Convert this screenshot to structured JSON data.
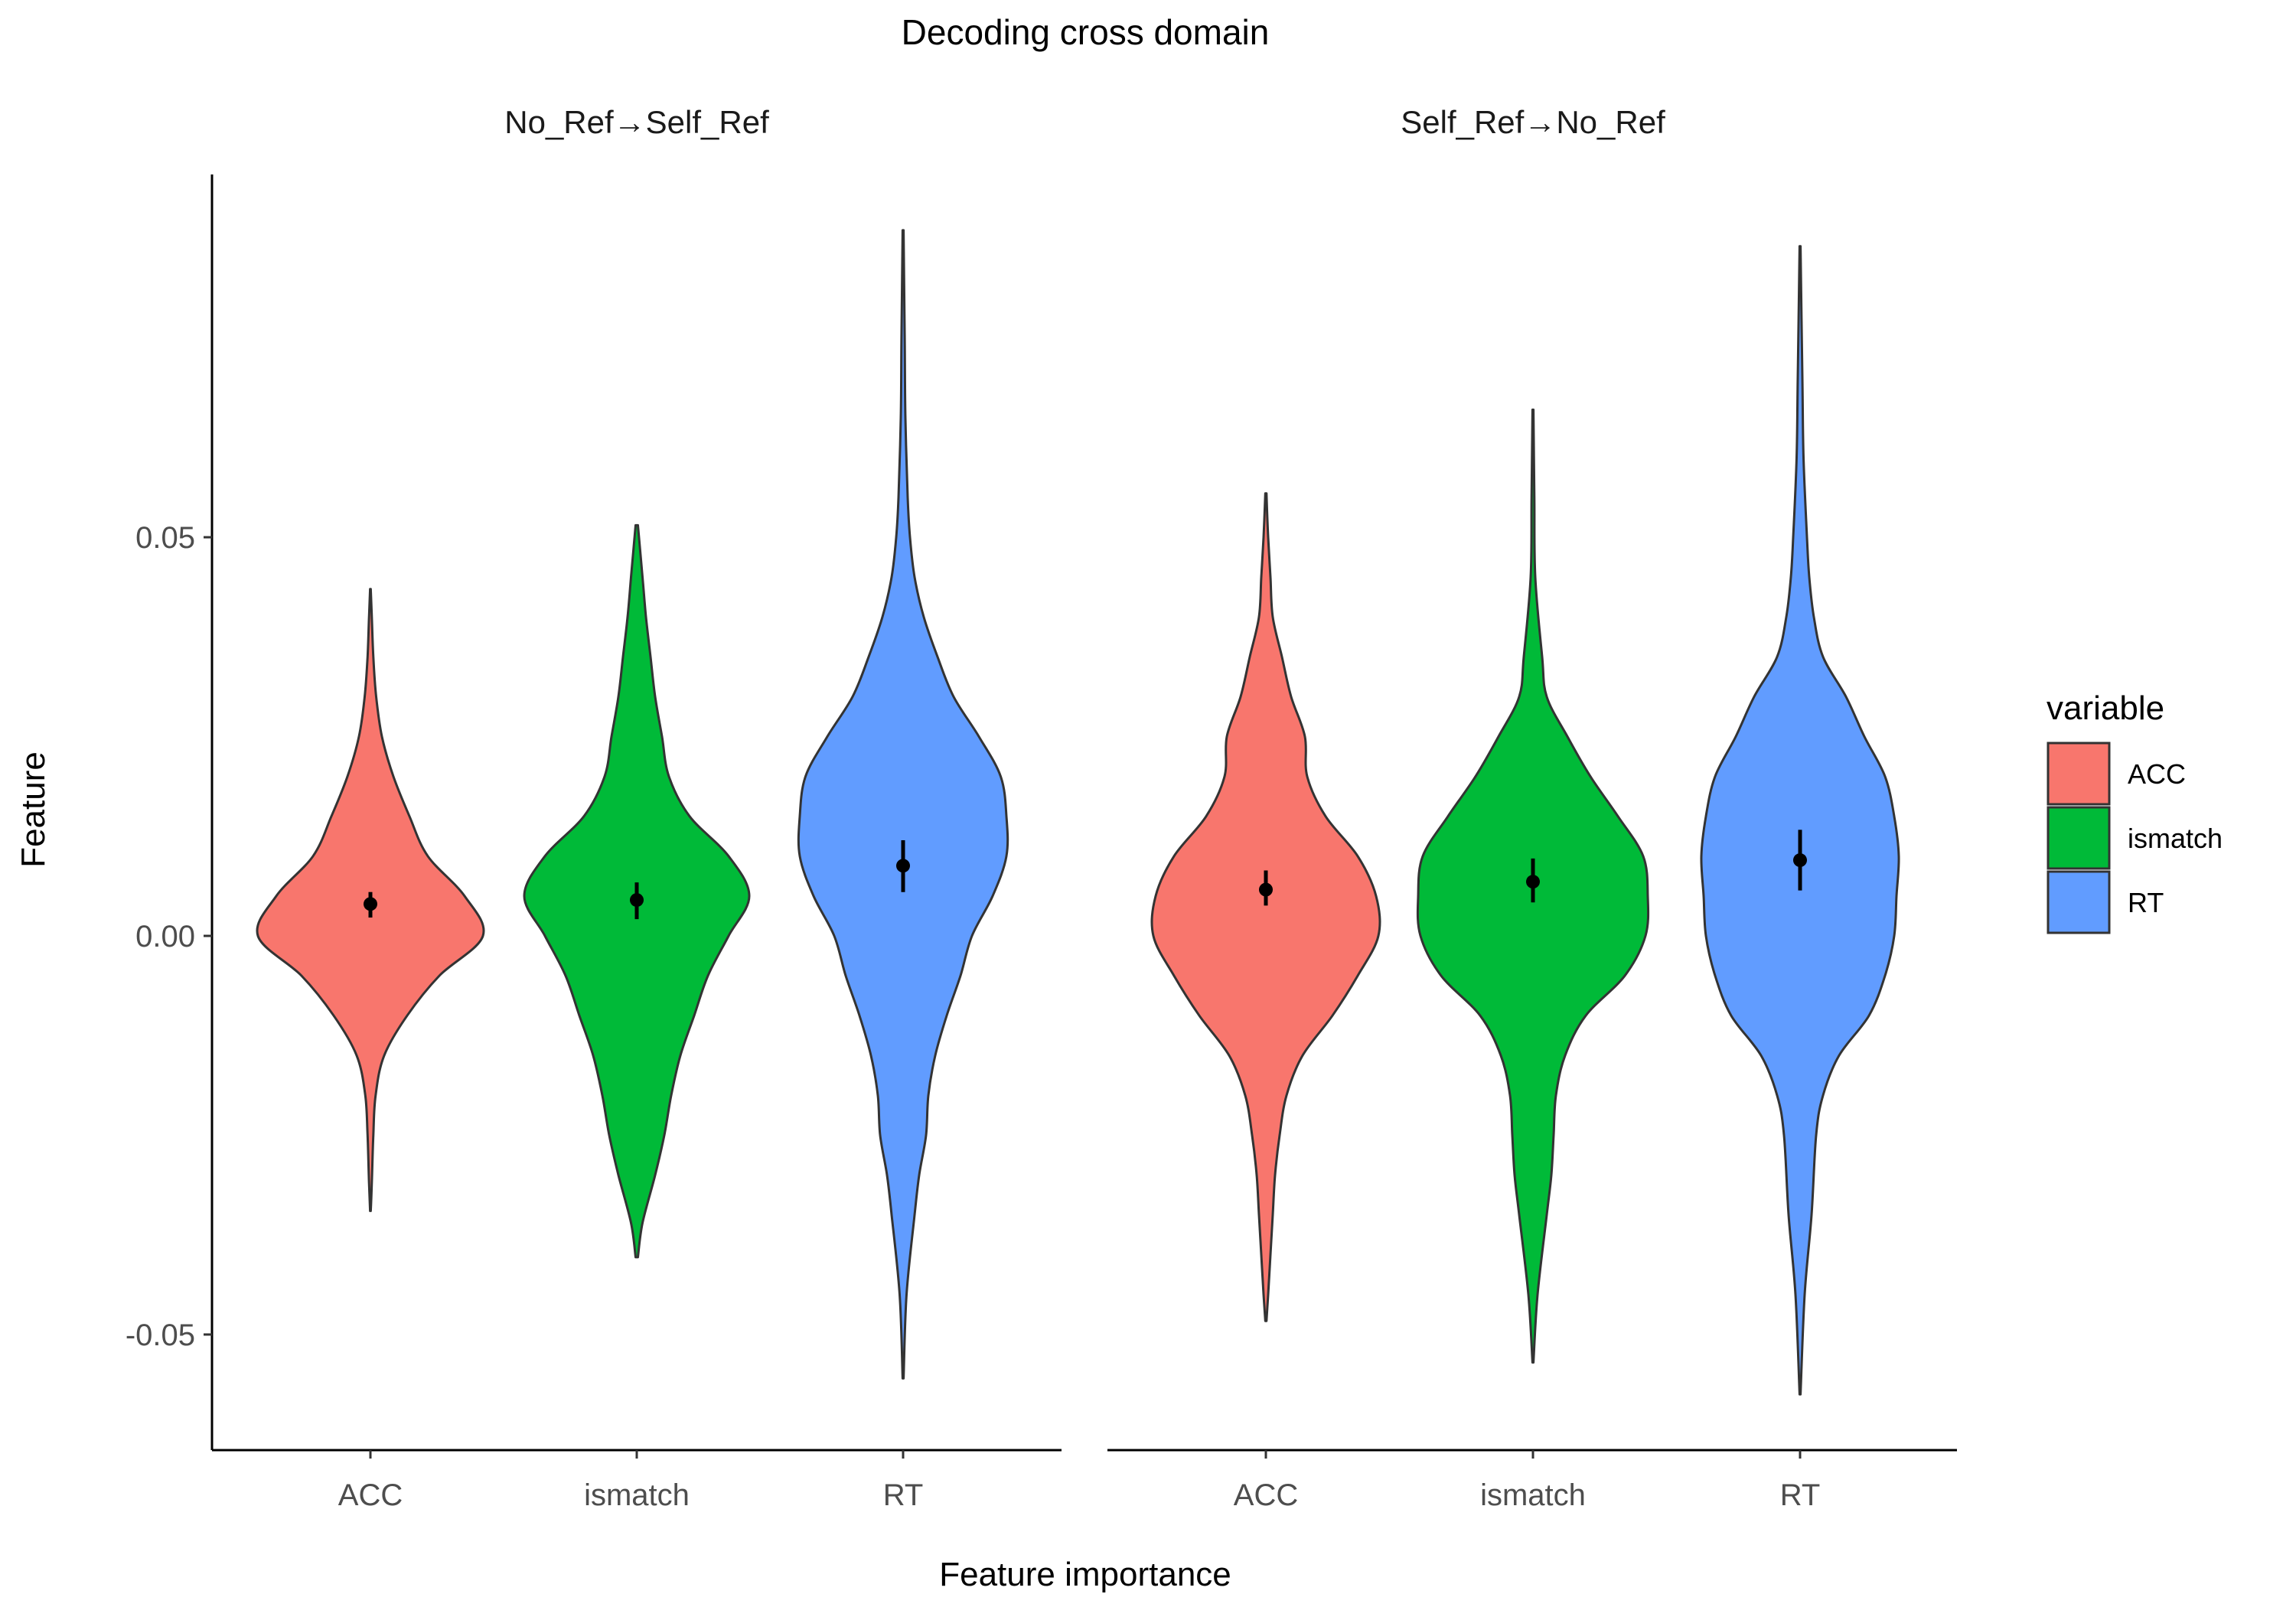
{
  "chart_data": {
    "type": "violin",
    "title": "Decoding cross domain",
    "xlabel": "Feature importance",
    "ylabel": "Feature",
    "ylim": [
      -0.0645,
      0.0955
    ],
    "yticks": [
      -0.05,
      0.0,
      0.05
    ],
    "ytick_labels": [
      "-0.05",
      "0.00",
      "0.05"
    ],
    "categories": [
      "ACC",
      "ismatch",
      "RT"
    ],
    "grid": false,
    "legend": {
      "title": "variable",
      "position": "right",
      "entries": [
        {
          "name": "ACC",
          "color": "#F8766D"
        },
        {
          "name": "ismatch",
          "color": "#00BA38"
        },
        {
          "name": "RT",
          "color": "#619CFF"
        }
      ]
    },
    "facets": [
      {
        "label": "No_Ref→Self_Ref",
        "violins": [
          {
            "category": "ACC",
            "min": -0.0345,
            "max": 0.0435,
            "mean": 0.004,
            "ci": [
              0.0023,
              0.0055
            ],
            "profile": [
              [
                -0.0345,
                0.003
              ],
              [
                -0.031,
                0.012
              ],
              [
                -0.025,
                0.025
              ],
              [
                -0.02,
                0.045
              ],
              [
                -0.015,
                0.12
              ],
              [
                -0.01,
                0.32
              ],
              [
                -0.005,
                0.6
              ],
              [
                0.0,
                0.98
              ],
              [
                0.005,
                0.82
              ],
              [
                0.01,
                0.5
              ],
              [
                0.015,
                0.34
              ],
              [
                0.02,
                0.2
              ],
              [
                0.025,
                0.1
              ],
              [
                0.03,
                0.05
              ],
              [
                0.035,
                0.025
              ],
              [
                0.04,
                0.012
              ],
              [
                0.0435,
                0.003
              ]
            ]
          },
          {
            "category": "ismatch",
            "min": -0.0403,
            "max": 0.0515,
            "mean": 0.0045,
            "ci": [
              0.0021,
              0.0067
            ],
            "profile": [
              [
                -0.0403,
                0.01
              ],
              [
                -0.036,
                0.05
              ],
              [
                -0.03,
                0.16
              ],
              [
                -0.025,
                0.24
              ],
              [
                -0.02,
                0.3
              ],
              [
                -0.015,
                0.38
              ],
              [
                -0.01,
                0.5
              ],
              [
                -0.005,
                0.62
              ],
              [
                0.0,
                0.8
              ],
              [
                0.005,
                0.98
              ],
              [
                0.01,
                0.8
              ],
              [
                0.015,
                0.46
              ],
              [
                0.02,
                0.28
              ],
              [
                0.025,
                0.22
              ],
              [
                0.03,
                0.16
              ],
              [
                0.035,
                0.12
              ],
              [
                0.04,
                0.08
              ],
              [
                0.045,
                0.05
              ],
              [
                0.0515,
                0.01
              ]
            ]
          },
          {
            "category": "RT",
            "min": -0.0555,
            "max": 0.0885,
            "mean": 0.0088,
            "ci": [
              0.0055,
              0.012
            ],
            "profile": [
              [
                -0.0555,
                0.004
              ],
              [
                -0.045,
                0.03
              ],
              [
                -0.035,
                0.1
              ],
              [
                -0.03,
                0.14
              ],
              [
                -0.025,
                0.2
              ],
              [
                -0.02,
                0.22
              ],
              [
                -0.015,
                0.28
              ],
              [
                -0.01,
                0.38
              ],
              [
                -0.005,
                0.5
              ],
              [
                0.0,
                0.6
              ],
              [
                0.005,
                0.78
              ],
              [
                0.01,
                0.9
              ],
              [
                0.015,
                0.9
              ],
              [
                0.02,
                0.85
              ],
              [
                0.025,
                0.66
              ],
              [
                0.03,
                0.44
              ],
              [
                0.035,
                0.3
              ],
              [
                0.04,
                0.18
              ],
              [
                0.045,
                0.1
              ],
              [
                0.05,
                0.06
              ],
              [
                0.055,
                0.04
              ],
              [
                0.065,
                0.02
              ],
              [
                0.075,
                0.014
              ],
              [
                0.0885,
                0.004
              ]
            ]
          }
        ]
      },
      {
        "label": "Self_Ref→No_Ref",
        "violins": [
          {
            "category": "ACC",
            "min": -0.0483,
            "max": 0.0555,
            "mean": 0.0058,
            "ci": [
              0.0038,
              0.0082
            ],
            "profile": [
              [
                -0.0483,
                0.005
              ],
              [
                -0.045,
                0.02
              ],
              [
                -0.04,
                0.04
              ],
              [
                -0.035,
                0.06
              ],
              [
                -0.03,
                0.08
              ],
              [
                -0.025,
                0.12
              ],
              [
                -0.02,
                0.18
              ],
              [
                -0.015,
                0.32
              ],
              [
                -0.01,
                0.58
              ],
              [
                -0.005,
                0.8
              ],
              [
                0.0,
                0.98
              ],
              [
                0.005,
                0.96
              ],
              [
                0.01,
                0.8
              ],
              [
                0.015,
                0.52
              ],
              [
                0.02,
                0.36
              ],
              [
                0.025,
                0.34
              ],
              [
                0.03,
                0.22
              ],
              [
                0.035,
                0.14
              ],
              [
                0.04,
                0.06
              ],
              [
                0.045,
                0.04
              ],
              [
                0.05,
                0.02
              ],
              [
                0.0555,
                0.005
              ]
            ]
          },
          {
            "category": "ismatch",
            "min": -0.0535,
            "max": 0.066,
            "mean": 0.0068,
            "ci": [
              0.0042,
              0.0097
            ],
            "profile": [
              [
                -0.0535,
                0.004
              ],
              [
                -0.045,
                0.04
              ],
              [
                -0.035,
                0.12
              ],
              [
                -0.03,
                0.16
              ],
              [
                -0.025,
                0.18
              ],
              [
                -0.02,
                0.2
              ],
              [
                -0.015,
                0.28
              ],
              [
                -0.01,
                0.46
              ],
              [
                -0.005,
                0.8
              ],
              [
                0.0,
                0.98
              ],
              [
                0.005,
                1.0
              ],
              [
                0.01,
                0.96
              ],
              [
                0.015,
                0.74
              ],
              [
                0.02,
                0.5
              ],
              [
                0.025,
                0.3
              ],
              [
                0.03,
                0.12
              ],
              [
                0.035,
                0.08
              ],
              [
                0.045,
                0.02
              ],
              [
                0.055,
                0.012
              ],
              [
                0.066,
                0.004
              ]
            ]
          },
          {
            "category": "RT",
            "min": -0.0575,
            "max": 0.0865,
            "mean": 0.0095,
            "ci": [
              0.0057,
              0.0133
            ],
            "profile": [
              [
                -0.0575,
                0.004
              ],
              [
                -0.045,
                0.04
              ],
              [
                -0.035,
                0.1
              ],
              [
                -0.025,
                0.14
              ],
              [
                -0.02,
                0.2
              ],
              [
                -0.015,
                0.34
              ],
              [
                -0.01,
                0.6
              ],
              [
                -0.005,
                0.74
              ],
              [
                0.0,
                0.82
              ],
              [
                0.005,
                0.84
              ],
              [
                0.01,
                0.86
              ],
              [
                0.015,
                0.82
              ],
              [
                0.02,
                0.74
              ],
              [
                0.025,
                0.56
              ],
              [
                0.03,
                0.4
              ],
              [
                0.035,
                0.2
              ],
              [
                0.04,
                0.12
              ],
              [
                0.045,
                0.08
              ],
              [
                0.05,
                0.06
              ],
              [
                0.06,
                0.03
              ],
              [
                0.07,
                0.02
              ],
              [
                0.0865,
                0.004
              ]
            ]
          }
        ]
      }
    ]
  }
}
